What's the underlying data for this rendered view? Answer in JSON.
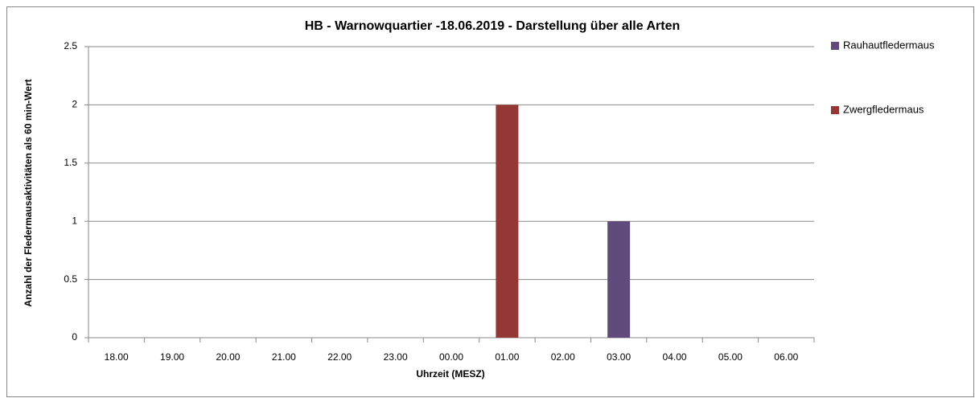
{
  "chart_data": {
    "type": "bar",
    "stacked": true,
    "title": "HB - Warnowquartier -18.06.2019 - Darstellung über alle Arten",
    "x_label": "Uhrzeit (MESZ)",
    "y_label": "Anzahl der Fledermausaktivitäten als 60 min-Wert",
    "categories": [
      "18.00",
      "19.00",
      "20.00",
      "21.00",
      "22.00",
      "23.00",
      "00.00",
      "01.00",
      "02.00",
      "03.00",
      "04.00",
      "05.00",
      "06.00"
    ],
    "series": [
      {
        "name": "Rauhautfledermaus",
        "color": "#604a7b",
        "values": [
          0,
          0,
          0,
          0,
          0,
          0,
          0,
          0,
          0,
          1,
          0,
          0,
          0
        ]
      },
      {
        "name": "Zwergfledermaus",
        "color": "#953735",
        "values": [
          0,
          0,
          0,
          0,
          0,
          0,
          0,
          2,
          0,
          0,
          0,
          0,
          0
        ]
      }
    ],
    "ylim": [
      0,
      2.5
    ],
    "yticks": [
      0,
      0.5,
      1,
      1.5,
      2,
      2.5
    ],
    "grid": true,
    "legend": "right"
  }
}
